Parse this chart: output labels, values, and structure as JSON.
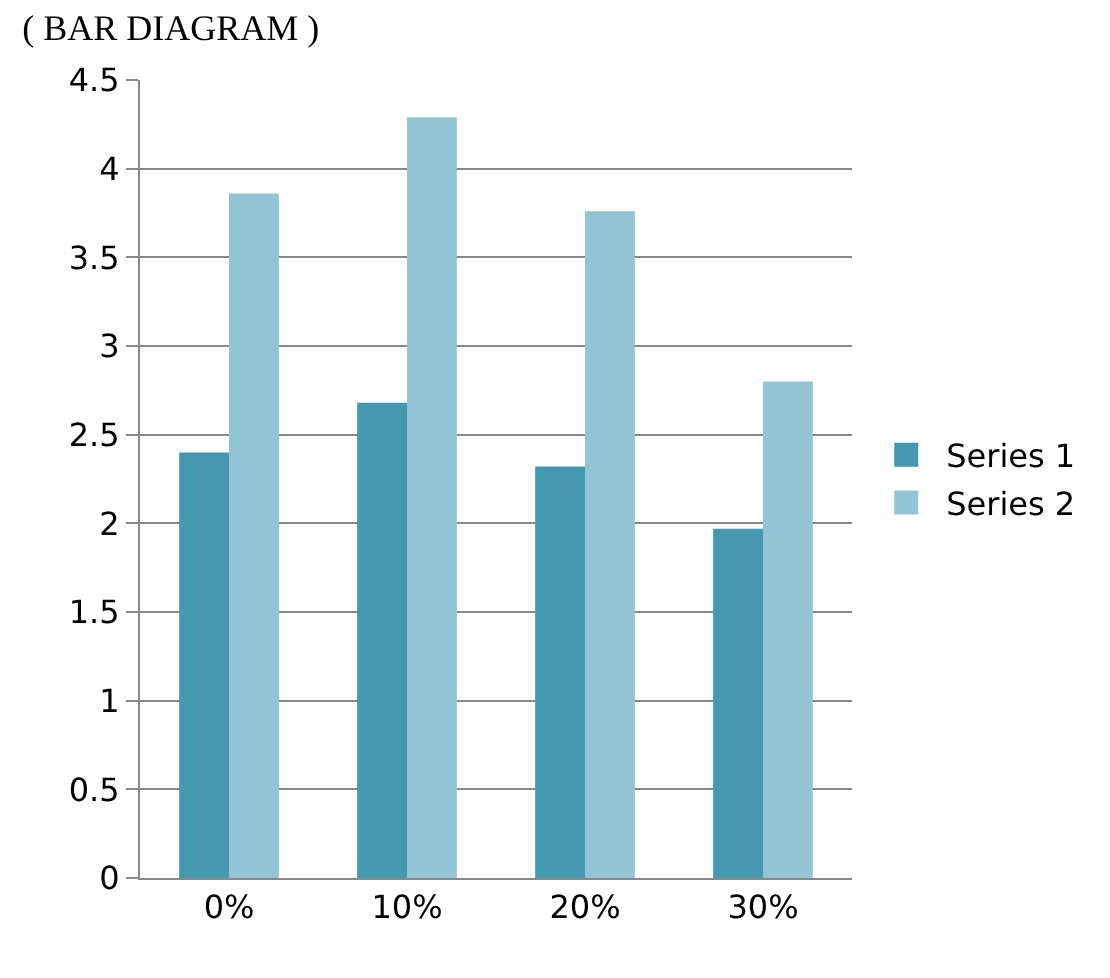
{
  "chart_data": {
    "type": "bar",
    "title": "( BAR DIAGRAM )",
    "categories": [
      "0%",
      "10%",
      "20%",
      "30%"
    ],
    "series": [
      {
        "name": "Series 1",
        "color": "#4499b0",
        "values": [
          2.4,
          2.68,
          2.32,
          1.97
        ]
      },
      {
        "name": "Series 2",
        "color": "#93c4d6",
        "values": [
          3.86,
          4.29,
          3.76,
          2.8
        ]
      }
    ],
    "ylim": [
      0,
      4.5
    ],
    "yticks": [
      0,
      0.5,
      1,
      1.5,
      2,
      2.5,
      3,
      3.5,
      4,
      4.5
    ],
    "grid": "y",
    "legend": "right"
  }
}
